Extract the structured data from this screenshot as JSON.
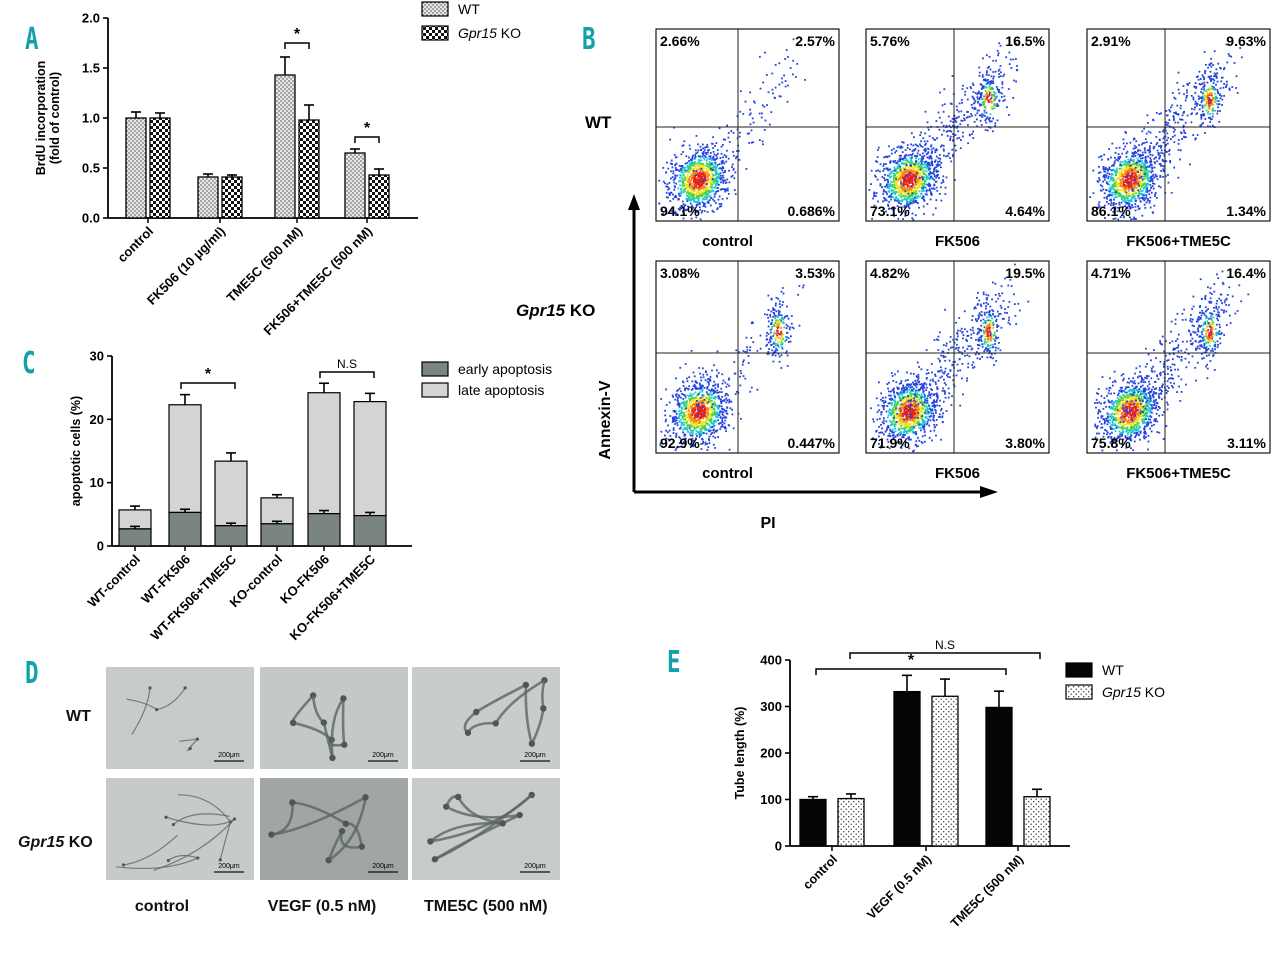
{
  "panels": {
    "A": "A",
    "B": "B",
    "C": "C",
    "D": "D",
    "E": "E"
  },
  "chart_data": [
    {
      "id": "A",
      "type": "bar",
      "ylabel": "BrdU incorporation\n(fold of control)",
      "ylim": [
        0,
        2.0
      ],
      "yticks": [
        "0.0",
        "0.5",
        "1.0",
        "1.5",
        "2.0"
      ],
      "categories": [
        "control",
        "FK506 (10 μg/ml)",
        "TME5C (500 nM)",
        "FK506+TME5C (500 nM)"
      ],
      "series": [
        {
          "name": "WT",
          "values": [
            1.0,
            0.41,
            1.43,
            0.65
          ],
          "errors": [
            0.06,
            0.03,
            0.18,
            0.04
          ]
        },
        {
          "name": "Gpr15 KO",
          "values": [
            1.0,
            0.41,
            0.98,
            0.43
          ],
          "errors": [
            0.05,
            0.02,
            0.15,
            0.06
          ]
        }
      ],
      "legend": [
        "WT",
        "Gpr15 KO"
      ],
      "significance": [
        "*",
        "*"
      ]
    },
    {
      "id": "C",
      "type": "bar",
      "stacked": true,
      "ylabel": "apoptotic cells (%)",
      "ylim": [
        0,
        30
      ],
      "yticks": [
        "0",
        "10",
        "20",
        "30"
      ],
      "categories": [
        "WT-control",
        "WT-FK506",
        "WT-FK506+TME5C",
        "KO-control",
        "KO-FK506",
        "KO-FK506+TME5C"
      ],
      "series": [
        {
          "name": "early apoptosis",
          "values": [
            2.7,
            5.3,
            3.2,
            3.5,
            5.1,
            4.8
          ],
          "errors": [
            0.4,
            0.5,
            0.4,
            0.4,
            0.5,
            0.5
          ]
        },
        {
          "name": "late apoptosis",
          "values": [
            3.0,
            17.0,
            10.2,
            4.1,
            19.1,
            18.0
          ],
          "errors": [
            0.6,
            1.6,
            1.3,
            0.5,
            1.5,
            1.3
          ]
        }
      ],
      "legend": [
        "early apoptosis",
        "late apoptosis"
      ],
      "significance": [
        "*",
        "N.S"
      ]
    },
    {
      "id": "E",
      "type": "bar",
      "ylabel": "Tube length (%)",
      "ylim": [
        0,
        400
      ],
      "yticks": [
        "0",
        "100",
        "200",
        "300",
        "400"
      ],
      "categories": [
        "control",
        "VEGF (0.5 nM)",
        "TME5C (500 nM)"
      ],
      "series": [
        {
          "name": "WT",
          "values": [
            100,
            332,
            298
          ],
          "errors": [
            6,
            35,
            35
          ]
        },
        {
          "name": "Gpr15 KO",
          "values": [
            102,
            322,
            106
          ],
          "errors": [
            10,
            37,
            16
          ]
        }
      ],
      "legend": [
        "WT",
        "Gpr15 KO"
      ],
      "significance": [
        "*",
        "N.S"
      ]
    },
    {
      "id": "B",
      "type": "scatter",
      "xlabel": "PI",
      "ylabel": "Annexin-V",
      "rows": [
        "WT",
        "Gpr15 KO"
      ],
      "columns": [
        "control",
        "FK506",
        "FK506+TME5C"
      ],
      "quadrants": [
        [
          {
            "ul": "2.66%",
            "ur": "2.57%",
            "ll": "94.1%",
            "lr": "0.686%"
          },
          {
            "ul": "5.76%",
            "ur": "16.5%",
            "ll": "73.1%",
            "lr": "4.64%"
          },
          {
            "ul": "2.91%",
            "ur": "9.63%",
            "ll": "86.1%",
            "lr": "1.34%"
          }
        ],
        [
          {
            "ul": "3.08%",
            "ur": "3.53%",
            "ll": "92.9%",
            "lr": "0.447%"
          },
          {
            "ul": "4.82%",
            "ur": "19.5%",
            "ll": "71.9%",
            "lr": "3.80%"
          },
          {
            "ul": "4.71%",
            "ur": "16.4%",
            "ll": "75.8%",
            "lr": "3.11%"
          }
        ]
      ]
    }
  ],
  "panel_d": {
    "rows": [
      "WT",
      "Gpr15 KO"
    ],
    "columns": [
      "control",
      "VEGF (0.5 nM)",
      "TME5C (500 nM)"
    ],
    "scale_bar": "200μm"
  },
  "text": {
    "gpr15": "Gpr15",
    "ko": "KO",
    "significance_star": "*",
    "significance_ns": "N.S"
  }
}
